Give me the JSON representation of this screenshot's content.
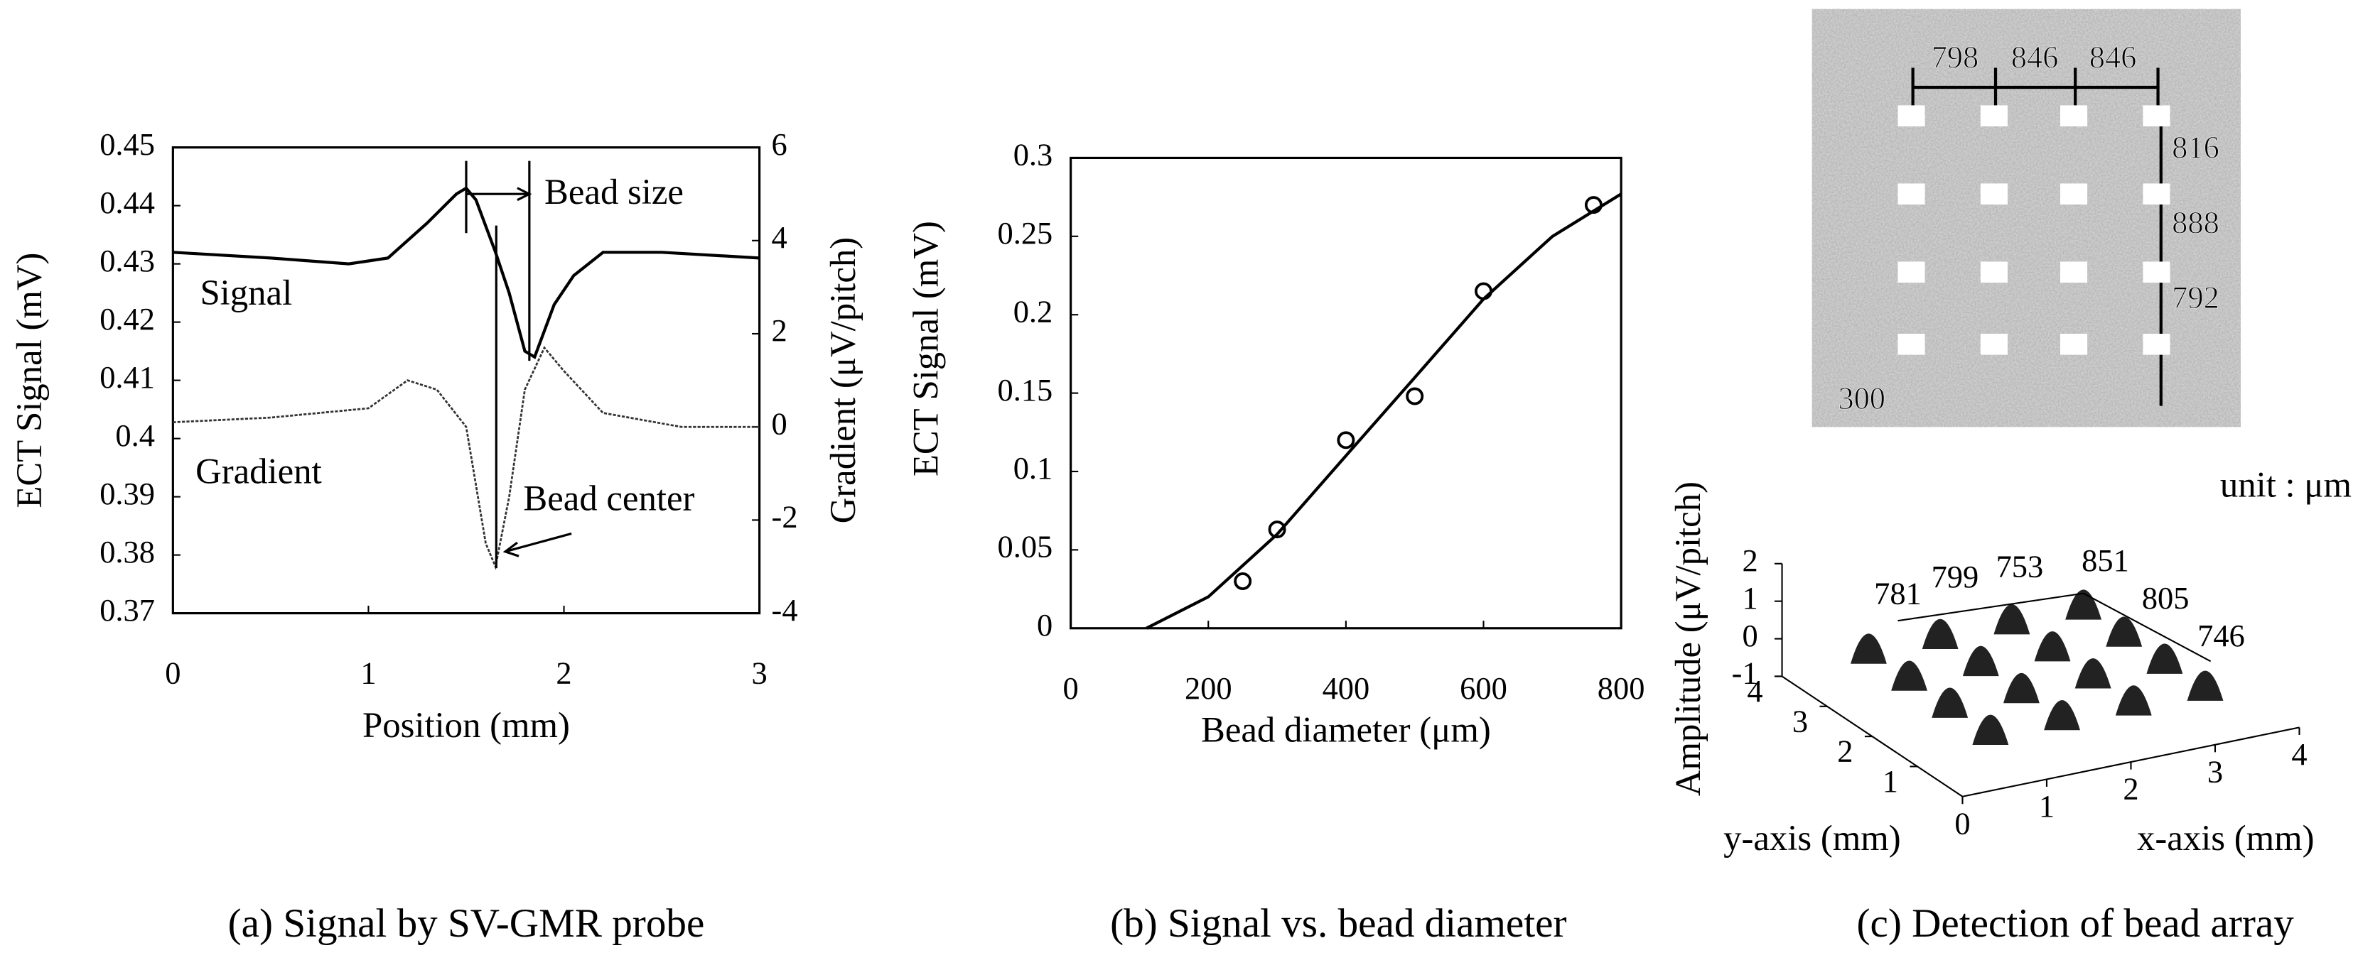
{
  "chart_data": [
    {
      "type": "line",
      "caption": "(a) Signal by SV-GMR probe",
      "x_label": "Position (mm)",
      "y_label": "ECT Signal (mV)",
      "y2_label": "Gradient (μV/pitch)",
      "xlim": [
        0,
        3
      ],
      "xticks": [
        0,
        1,
        2,
        3
      ],
      "ylim": [
        0.37,
        0.45
      ],
      "yticks": [
        0.37,
        0.38,
        0.39,
        0.4,
        0.41,
        0.42,
        0.43,
        0.44,
        0.45
      ],
      "y2lim": [
        -4,
        6
      ],
      "y2ticks": [
        -4,
        -2,
        0,
        2,
        4,
        6
      ],
      "series": [
        {
          "name": "Signal",
          "color": "#000000",
          "x": [
            0,
            0.5,
            0.9,
            1.1,
            1.3,
            1.45,
            1.5,
            1.55,
            1.65,
            1.72,
            1.8,
            1.85,
            1.95,
            2.05,
            2.2,
            2.5,
            3
          ],
          "values": [
            0.432,
            0.431,
            0.43,
            0.431,
            0.437,
            0.442,
            0.443,
            0.441,
            0.432,
            0.425,
            0.415,
            0.414,
            0.423,
            0.428,
            0.432,
            0.432,
            0.431
          ]
        },
        {
          "name": "Gradient",
          "color": "#333333",
          "axis": "y2",
          "x": [
            0,
            0.5,
            1.0,
            1.2,
            1.35,
            1.5,
            1.6,
            1.65,
            1.72,
            1.8,
            1.9,
            2.0,
            2.2,
            2.6,
            3
          ],
          "values": [
            0.1,
            0.2,
            0.4,
            1.0,
            0.8,
            0,
            -2.5,
            -3.0,
            -1.5,
            0.8,
            1.7,
            1.2,
            0.3,
            0,
            0
          ]
        }
      ],
      "annotations": [
        "Bead size",
        "Bead center"
      ]
    },
    {
      "type": "scatter",
      "caption": "(b) Signal vs. bead diameter",
      "x_label": "Bead diameter (μm)",
      "y_label": "ECT Signal (mV)",
      "xlim": [
        0,
        800
      ],
      "xticks": [
        0,
        200,
        400,
        600,
        800
      ],
      "ylim": [
        0,
        0.3
      ],
      "yticks": [
        0,
        0.05,
        0.1,
        0.15,
        0.2,
        0.25,
        0.3
      ],
      "series": [
        {
          "style": "marker",
          "color": "#000000",
          "x": [
            250,
            300,
            400,
            500,
            600,
            760
          ],
          "values": [
            0.03,
            0.063,
            0.12,
            0.148,
            0.215,
            0.27
          ]
        },
        {
          "style": "line",
          "color": "#000000",
          "x": [
            110,
            200,
            300,
            400,
            500,
            600,
            700,
            800
          ],
          "values": [
            0,
            0.02,
            0.06,
            0.11,
            0.16,
            0.21,
            0.25,
            0.277
          ]
        }
      ]
    },
    {
      "type": "surface3d",
      "caption": "(c) Detection of bead array",
      "x_label": "x-axis (mm)",
      "y_label": "y-axis (mm)",
      "z_label": "Amplitude (μV/pitch)",
      "unit_note": "unit : μm",
      "xticks": [
        0,
        1,
        2,
        3,
        4
      ],
      "yticks": [
        1,
        2,
        3,
        4
      ],
      "zticks": [
        -1,
        0,
        1,
        2
      ],
      "bead_labels": [
        781,
        799,
        753,
        851,
        805,
        746
      ],
      "image_labels": [
        798,
        846,
        846,
        816,
        888,
        792,
        300
      ]
    }
  ]
}
